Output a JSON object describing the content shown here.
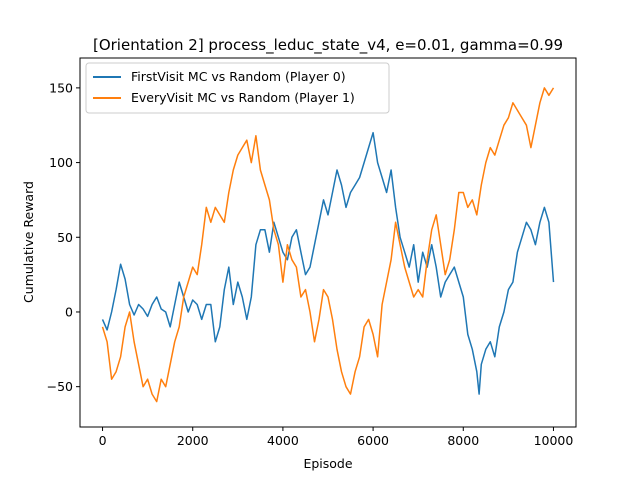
{
  "chart_data": {
    "type": "line",
    "title": "[Orientation 2] process_leduc_state_v4, e=0.01, gamma=0.99",
    "xlabel": "Episode",
    "ylabel": "Cumulative Reward",
    "xlim": [
      -500,
      10500
    ],
    "ylim": [
      -77,
      170
    ],
    "x_ticks": [
      0,
      2000,
      4000,
      6000,
      8000,
      10000
    ],
    "y_ticks": [
      -50,
      0,
      50,
      100,
      150
    ],
    "grid": false,
    "legend_position": "upper left",
    "series": [
      {
        "name": "FirstVisit MC vs Random (Player 0)",
        "color": "#1f77b4",
        "points": [
          [
            0,
            -5
          ],
          [
            100,
            -12
          ],
          [
            200,
            0
          ],
          [
            300,
            15
          ],
          [
            400,
            32
          ],
          [
            500,
            22
          ],
          [
            600,
            5
          ],
          [
            700,
            -2
          ],
          [
            800,
            5
          ],
          [
            900,
            2
          ],
          [
            1000,
            -3
          ],
          [
            1100,
            5
          ],
          [
            1200,
            10
          ],
          [
            1300,
            2
          ],
          [
            1400,
            0
          ],
          [
            1500,
            -10
          ],
          [
            1600,
            5
          ],
          [
            1700,
            20
          ],
          [
            1800,
            10
          ],
          [
            1900,
            0
          ],
          [
            2000,
            8
          ],
          [
            2100,
            5
          ],
          [
            2200,
            -5
          ],
          [
            2300,
            5
          ],
          [
            2400,
            5
          ],
          [
            2500,
            -20
          ],
          [
            2600,
            -10
          ],
          [
            2700,
            15
          ],
          [
            2800,
            30
          ],
          [
            2900,
            5
          ],
          [
            3000,
            20
          ],
          [
            3100,
            10
          ],
          [
            3200,
            -5
          ],
          [
            3300,
            10
          ],
          [
            3400,
            45
          ],
          [
            3500,
            55
          ],
          [
            3600,
            55
          ],
          [
            3700,
            40
          ],
          [
            3800,
            60
          ],
          [
            3900,
            50
          ],
          [
            4000,
            40
          ],
          [
            4100,
            35
          ],
          [
            4200,
            50
          ],
          [
            4300,
            55
          ],
          [
            4400,
            40
          ],
          [
            4500,
            25
          ],
          [
            4600,
            30
          ],
          [
            4700,
            45
          ],
          [
            4800,
            60
          ],
          [
            4900,
            75
          ],
          [
            5000,
            65
          ],
          [
            5100,
            80
          ],
          [
            5200,
            95
          ],
          [
            5300,
            85
          ],
          [
            5400,
            70
          ],
          [
            5500,
            80
          ],
          [
            5600,
            85
          ],
          [
            5700,
            90
          ],
          [
            5800,
            100
          ],
          [
            5900,
            110
          ],
          [
            6000,
            120
          ],
          [
            6100,
            100
          ],
          [
            6200,
            90
          ],
          [
            6300,
            80
          ],
          [
            6400,
            95
          ],
          [
            6500,
            70
          ],
          [
            6600,
            50
          ],
          [
            6700,
            40
          ],
          [
            6800,
            30
          ],
          [
            6900,
            45
          ],
          [
            7000,
            20
          ],
          [
            7100,
            40
          ],
          [
            7200,
            30
          ],
          [
            7300,
            45
          ],
          [
            7400,
            30
          ],
          [
            7500,
            10
          ],
          [
            7600,
            20
          ],
          [
            7700,
            25
          ],
          [
            7800,
            30
          ],
          [
            7900,
            20
          ],
          [
            8000,
            10
          ],
          [
            8100,
            -15
          ],
          [
            8200,
            -25
          ],
          [
            8300,
            -40
          ],
          [
            8350,
            -55
          ],
          [
            8400,
            -35
          ],
          [
            8500,
            -25
          ],
          [
            8600,
            -20
          ],
          [
            8700,
            -30
          ],
          [
            8800,
            -10
          ],
          [
            8900,
            0
          ],
          [
            9000,
            15
          ],
          [
            9100,
            20
          ],
          [
            9200,
            40
          ],
          [
            9300,
            50
          ],
          [
            9400,
            60
          ],
          [
            9500,
            55
          ],
          [
            9600,
            45
          ],
          [
            9700,
            60
          ],
          [
            9800,
            70
          ],
          [
            9900,
            60
          ],
          [
            10000,
            20
          ]
        ]
      },
      {
        "name": "EveryVisit MC vs Random (Player 1)",
        "color": "#ff7f0e",
        "points": [
          [
            0,
            -10
          ],
          [
            100,
            -20
          ],
          [
            200,
            -45
          ],
          [
            300,
            -40
          ],
          [
            400,
            -30
          ],
          [
            500,
            -10
          ],
          [
            600,
            0
          ],
          [
            700,
            -20
          ],
          [
            800,
            -35
          ],
          [
            900,
            -50
          ],
          [
            1000,
            -45
          ],
          [
            1100,
            -55
          ],
          [
            1200,
            -60
          ],
          [
            1300,
            -45
          ],
          [
            1400,
            -50
          ],
          [
            1500,
            -35
          ],
          [
            1600,
            -20
          ],
          [
            1700,
            -10
          ],
          [
            1800,
            10
          ],
          [
            1900,
            20
          ],
          [
            2000,
            30
          ],
          [
            2100,
            25
          ],
          [
            2200,
            45
          ],
          [
            2300,
            70
          ],
          [
            2400,
            60
          ],
          [
            2500,
            70
          ],
          [
            2600,
            65
          ],
          [
            2700,
            60
          ],
          [
            2800,
            80
          ],
          [
            2900,
            95
          ],
          [
            3000,
            105
          ],
          [
            3100,
            110
          ],
          [
            3200,
            115
          ],
          [
            3300,
            100
          ],
          [
            3400,
            118
          ],
          [
            3500,
            95
          ],
          [
            3600,
            85
          ],
          [
            3700,
            75
          ],
          [
            3800,
            55
          ],
          [
            3900,
            45
          ],
          [
            4000,
            20
          ],
          [
            4100,
            45
          ],
          [
            4200,
            35
          ],
          [
            4300,
            30
          ],
          [
            4400,
            10
          ],
          [
            4500,
            15
          ],
          [
            4600,
            0
          ],
          [
            4700,
            -20
          ],
          [
            4800,
            -5
          ],
          [
            4900,
            15
          ],
          [
            5000,
            10
          ],
          [
            5100,
            -5
          ],
          [
            5200,
            -25
          ],
          [
            5300,
            -40
          ],
          [
            5400,
            -50
          ],
          [
            5500,
            -55
          ],
          [
            5600,
            -40
          ],
          [
            5700,
            -30
          ],
          [
            5800,
            -10
          ],
          [
            5900,
            -5
          ],
          [
            6000,
            -15
          ],
          [
            6100,
            -30
          ],
          [
            6200,
            5
          ],
          [
            6300,
            20
          ],
          [
            6400,
            35
          ],
          [
            6500,
            60
          ],
          [
            6600,
            45
          ],
          [
            6700,
            30
          ],
          [
            6800,
            20
          ],
          [
            6900,
            10
          ],
          [
            7000,
            15
          ],
          [
            7100,
            10
          ],
          [
            7200,
            35
          ],
          [
            7300,
            55
          ],
          [
            7400,
            65
          ],
          [
            7500,
            45
          ],
          [
            7600,
            25
          ],
          [
            7700,
            35
          ],
          [
            7800,
            55
          ],
          [
            7900,
            80
          ],
          [
            8000,
            80
          ],
          [
            8100,
            70
          ],
          [
            8200,
            75
          ],
          [
            8300,
            65
          ],
          [
            8400,
            85
          ],
          [
            8500,
            100
          ],
          [
            8600,
            110
          ],
          [
            8700,
            105
          ],
          [
            8800,
            115
          ],
          [
            8900,
            125
          ],
          [
            9000,
            130
          ],
          [
            9100,
            140
          ],
          [
            9200,
            135
          ],
          [
            9300,
            130
          ],
          [
            9400,
            125
          ],
          [
            9500,
            110
          ],
          [
            9600,
            125
          ],
          [
            9700,
            140
          ],
          [
            9800,
            150
          ],
          [
            9900,
            145
          ],
          [
            10000,
            150
          ]
        ]
      }
    ]
  }
}
